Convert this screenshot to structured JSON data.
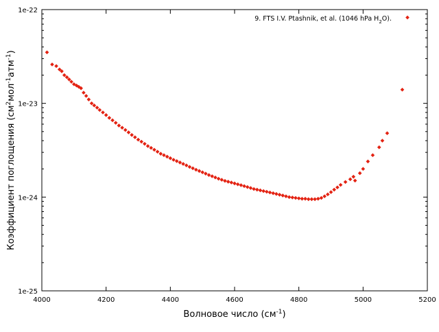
{
  "chart_data": {
    "type": "scatter",
    "title": "",
    "xlabel": "Волновое число (см",
    "xlabel_sup": "-1",
    "xlabel_end": ")",
    "ylabel_parts": [
      "Коэффициент поглощения (см",
      "2",
      "мол",
      "-1",
      "атм",
      "-1",
      ")"
    ],
    "xlim": [
      4000,
      5200
    ],
    "ylim": [
      1e-25,
      1e-22
    ],
    "yscale": "log",
    "grid": false,
    "legend_position": "top-right",
    "x_ticks": [
      4000,
      4200,
      4400,
      4600,
      4800,
      5000,
      5200
    ],
    "x_tick_labels": [
      "4000",
      "4200",
      "4400",
      "4600",
      "4800",
      "5000",
      "5200"
    ],
    "y_ticks": [
      1e-25,
      1e-24,
      1e-23,
      1e-22
    ],
    "y_tick_labels": [
      "1e-25",
      "1e-24",
      "1e-23",
      "1e-22"
    ],
    "series": [
      {
        "name": "9. FTS I.V. Ptashnik, et al. (1046 hPa H",
        "name_sub": "2",
        "name_end": "O).",
        "color": "#e32212",
        "x": [
          4016,
          4032,
          4045,
          4055,
          4062,
          4070,
          4078,
          4085,
          4092,
          4100,
          4108,
          4115,
          4122,
          4130,
          4138,
          4146,
          4155,
          4163,
          4172,
          4180,
          4190,
          4200,
          4210,
          4220,
          4230,
          4240,
          4250,
          4260,
          4270,
          4280,
          4290,
          4300,
          4310,
          4320,
          4330,
          4340,
          4350,
          4360,
          4370,
          4380,
          4390,
          4400,
          4410,
          4420,
          4430,
          4440,
          4450,
          4460,
          4470,
          4480,
          4490,
          4500,
          4510,
          4520,
          4530,
          4540,
          4550,
          4560,
          4570,
          4580,
          4590,
          4600,
          4610,
          4620,
          4630,
          4640,
          4650,
          4660,
          4670,
          4680,
          4690,
          4700,
          4710,
          4720,
          4730,
          4740,
          4750,
          4760,
          4770,
          4780,
          4790,
          4800,
          4810,
          4820,
          4830,
          4840,
          4850,
          4860,
          4870,
          4880,
          4890,
          4900,
          4910,
          4920,
          4930,
          4945,
          4960,
          4970,
          4975,
          4990,
          5000,
          5015,
          5030,
          5050,
          5060,
          5075,
          5122
        ],
        "y": [
          3.5e-23,
          2.6e-23,
          2.5e-23,
          2.3e-23,
          2.2e-23,
          2e-23,
          1.9e-23,
          1.8e-23,
          1.7e-23,
          1.6e-23,
          1.55e-23,
          1.5e-23,
          1.45e-23,
          1.3e-23,
          1.2e-23,
          1.1e-23,
          1e-23,
          9.5e-24,
          9e-24,
          8.5e-24,
          8e-24,
          7.5e-24,
          7e-24,
          6.6e-24,
          6.2e-24,
          5.8e-24,
          5.5e-24,
          5.2e-24,
          4.9e-24,
          4.6e-24,
          4.35e-24,
          4.1e-24,
          3.9e-24,
          3.7e-24,
          3.5e-24,
          3.35e-24,
          3.2e-24,
          3.05e-24,
          2.9e-24,
          2.8e-24,
          2.7e-24,
          2.6e-24,
          2.5e-24,
          2.42e-24,
          2.34e-24,
          2.26e-24,
          2.18e-24,
          2.1e-24,
          2.03e-24,
          1.96e-24,
          1.9e-24,
          1.84e-24,
          1.78e-24,
          1.72e-24,
          1.67e-24,
          1.62e-24,
          1.57e-24,
          1.53e-24,
          1.49e-24,
          1.46e-24,
          1.43e-24,
          1.4e-24,
          1.37e-24,
          1.34e-24,
          1.31e-24,
          1.28e-24,
          1.25e-24,
          1.22e-24,
          1.2e-24,
          1.18e-24,
          1.16e-24,
          1.14e-24,
          1.12e-24,
          1.1e-24,
          1.08e-24,
          1.06e-24,
          1.04e-24,
          1.02e-24,
          1e-24,
          9.9e-25,
          9.8e-25,
          9.7e-25,
          9.6e-25,
          9.6e-25,
          9.5e-25,
          9.5e-25,
          9.5e-25,
          9.6e-25,
          9.8e-25,
          1.02e-24,
          1.07e-24,
          1.13e-24,
          1.2e-24,
          1.27e-24,
          1.35e-24,
          1.45e-24,
          1.55e-24,
          1.65e-24,
          1.5e-24,
          1.8e-24,
          2e-24,
          2.4e-24,
          2.8e-24,
          3.4e-24,
          4e-24,
          4.8e-24,
          1.4e-23
        ]
      }
    ]
  }
}
